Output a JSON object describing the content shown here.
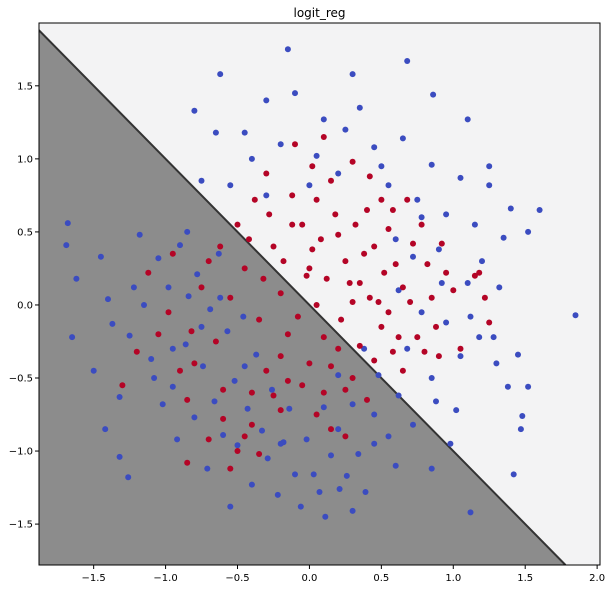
{
  "chart_data": {
    "type": "scatter",
    "title": "logit_reg",
    "xlabel": "",
    "ylabel": "",
    "xlim": [
      -1.88,
      2.02
    ],
    "ylim": [
      -1.78,
      1.93
    ],
    "xticks": [
      "−1.5",
      "−1.0",
      "−0.5",
      "0.0",
      "0.5",
      "1.0",
      "1.5",
      "2.0"
    ],
    "xtick_values": [
      -1.5,
      -1.0,
      -0.5,
      0.0,
      0.5,
      1.0,
      1.5,
      2.0
    ],
    "yticks": [
      "−1.5",
      "−1.0",
      "−0.5",
      "0.0",
      "0.5",
      "1.0",
      "1.5"
    ],
    "ytick_values": [
      -1.5,
      -1.0,
      -0.5,
      0.0,
      0.5,
      1.0,
      1.5
    ],
    "grid": false,
    "legend": "none",
    "decision_boundary": {
      "form": "x + y = c",
      "c": 0.0,
      "region_low_color": "#8c8c8c",
      "region_high_color": "#f3f3f4",
      "edge_color": "#333333"
    },
    "series": [
      {
        "color": "#3b4cc0",
        "points": [
          [
            -1.68,
            0.56
          ],
          [
            -1.69,
            0.41
          ],
          [
            -1.65,
            -0.22
          ],
          [
            -1.45,
            0.33
          ],
          [
            -1.4,
            0.04
          ],
          [
            -1.37,
            -0.13
          ],
          [
            -1.32,
            -0.63
          ],
          [
            -1.25,
            -0.21
          ],
          [
            -1.26,
            -1.18
          ],
          [
            -1.32,
            -1.04
          ],
          [
            -1.22,
            0.12
          ],
          [
            -1.18,
            0.48
          ],
          [
            -1.15,
            0.0
          ],
          [
            -1.1,
            -0.37
          ],
          [
            -1.05,
            0.32
          ],
          [
            -1.02,
            -0.68
          ],
          [
            -0.98,
            0.12
          ],
          [
            -0.95,
            -0.56
          ],
          [
            -0.92,
            -0.92
          ],
          [
            -0.9,
            0.41
          ],
          [
            -0.86,
            -0.27
          ],
          [
            -0.84,
            0.06
          ],
          [
            -0.8,
            -0.77
          ],
          [
            -0.78,
            0.21
          ],
          [
            -0.74,
            -0.42
          ],
          [
            -0.71,
            -1.12
          ],
          [
            -0.69,
            -0.03
          ],
          [
            -0.66,
            -0.66
          ],
          [
            -0.63,
            0.35
          ],
          [
            -0.6,
            -0.89
          ],
          [
            -0.57,
            -0.18
          ],
          [
            -0.55,
            -1.38
          ],
          [
            -0.52,
            -0.52
          ],
          [
            -0.5,
            -0.96
          ],
          [
            -0.46,
            -0.08
          ],
          [
            -0.43,
            -0.71
          ],
          [
            -0.4,
            -1.23
          ],
          [
            -0.37,
            -0.34
          ],
          [
            -0.33,
            -0.86
          ],
          [
            -0.29,
            -1.05
          ],
          [
            -0.26,
            -0.58
          ],
          [
            -0.22,
            -1.3
          ],
          [
            -0.18,
            -0.94
          ],
          [
            -0.14,
            -0.71
          ],
          [
            -0.1,
            -1.16
          ],
          [
            -0.06,
            -1.38
          ],
          [
            -0.02,
            -0.92
          ],
          [
            0.03,
            -1.16
          ],
          [
            0.07,
            -1.28
          ],
          [
            0.11,
            -1.45
          ],
          [
            0.15,
            -1.03
          ],
          [
            0.21,
            -1.26
          ],
          [
            0.26,
            -1.17
          ],
          [
            0.3,
            -1.41
          ],
          [
            0.34,
            -1.02
          ],
          [
            0.39,
            -1.28
          ],
          [
            -1.62,
            0.18
          ],
          [
            -1.5,
            -0.45
          ],
          [
            -1.42,
            -0.85
          ],
          [
            -0.95,
            -0.3
          ],
          [
            -0.85,
            0.5
          ],
          [
            -0.75,
            -0.15
          ],
          [
            -1.08,
            -0.5
          ],
          [
            -0.62,
            0.05
          ],
          [
            -0.45,
            -0.42
          ],
          [
            -0.2,
            -0.95
          ],
          [
            -0.15,
            1.75
          ],
          [
            -0.62,
            1.58
          ],
          [
            -0.8,
            1.33
          ],
          [
            -0.45,
            1.18
          ],
          [
            -0.3,
            1.4
          ],
          [
            0.1,
            1.27
          ],
          [
            0.3,
            1.58
          ],
          [
            0.68,
            1.67
          ],
          [
            0.86,
            1.44
          ],
          [
            1.1,
            1.27
          ],
          [
            -0.65,
            1.18
          ],
          [
            -0.4,
            1.0
          ],
          [
            -0.2,
            1.1
          ],
          [
            0.05,
            1.02
          ],
          [
            0.25,
            1.2
          ],
          [
            0.45,
            1.08
          ],
          [
            0.65,
            1.14
          ],
          [
            0.85,
            0.96
          ],
          [
            1.05,
            0.87
          ],
          [
            1.25,
            0.82
          ],
          [
            1.4,
            0.66
          ],
          [
            1.52,
            0.5
          ],
          [
            -0.75,
            0.85
          ],
          [
            -0.55,
            0.82
          ],
          [
            -0.3,
            0.75
          ],
          [
            0.0,
            0.82
          ],
          [
            0.2,
            0.9
          ],
          [
            0.55,
            0.82
          ],
          [
            0.75,
            0.72
          ],
          [
            0.95,
            0.62
          ],
          [
            1.15,
            0.55
          ],
          [
            1.35,
            0.46
          ],
          [
            1.2,
            0.3
          ],
          [
            1.32,
            0.12
          ],
          [
            1.1,
            0.15
          ],
          [
            0.9,
            0.38
          ],
          [
            0.72,
            0.33
          ],
          [
            0.62,
            0.1
          ],
          [
            0.78,
            -0.05
          ],
          [
            0.95,
            -0.12
          ],
          [
            1.12,
            -0.08
          ],
          [
            1.28,
            -0.22
          ],
          [
            1.05,
            -0.35
          ],
          [
            0.85,
            -0.5
          ],
          [
            0.62,
            -0.62
          ],
          [
            0.45,
            -0.75
          ],
          [
            0.3,
            -0.68
          ],
          [
            0.55,
            -0.9
          ],
          [
            0.72,
            -0.82
          ],
          [
            0.88,
            -0.66
          ],
          [
            1.02,
            -0.72
          ],
          [
            1.3,
            -0.4
          ],
          [
            1.45,
            -0.34
          ],
          [
            1.38,
            -0.56
          ],
          [
            1.52,
            -0.56
          ],
          [
            1.48,
            -0.76
          ],
          [
            1.47,
            -0.85
          ],
          [
            1.42,
            -1.16
          ],
          [
            1.12,
            -1.42
          ],
          [
            1.85,
            -0.07
          ],
          [
            0.85,
            -1.12
          ],
          [
            0.6,
            -1.1
          ],
          [
            0.45,
            -0.95
          ],
          [
            0.2,
            -0.85
          ],
          [
            0.1,
            -0.7
          ],
          [
            0.5,
            0.95
          ],
          [
            0.35,
            1.35
          ],
          [
            -0.1,
            1.45
          ],
          [
            1.25,
            0.95
          ],
          [
            1.6,
            0.65
          ],
          [
            0.38,
            -0.3
          ],
          [
            0.2,
            -0.48
          ],
          [
            0.48,
            -0.48
          ],
          [
            0.68,
            -0.3
          ],
          [
            0.6,
            0.45
          ],
          [
            0.92,
            0.15
          ],
          [
            0.78,
            0.6
          ],
          [
            1.18,
            -0.22
          ],
          [
            0.98,
            -0.95
          ]
        ]
      },
      {
        "color": "#b40426",
        "points": [
          [
            -1.3,
            -0.55
          ],
          [
            -1.2,
            -0.32
          ],
          [
            -1.12,
            0.22
          ],
          [
            -0.98,
            -0.05
          ],
          [
            -0.9,
            -0.45
          ],
          [
            -0.82,
            -0.18
          ],
          [
            -0.7,
            0.3
          ],
          [
            -0.6,
            -0.58
          ],
          [
            -0.5,
            0.55
          ],
          [
            -0.4,
            -0.82
          ],
          [
            -0.3,
            0.9
          ],
          [
            -0.2,
            -0.35
          ],
          [
            -0.1,
            1.1
          ],
          [
            0.0,
            0.25
          ],
          [
            0.1,
            -0.22
          ],
          [
            0.2,
            0.48
          ],
          [
            0.3,
            0.02
          ],
          [
            0.4,
            0.65
          ],
          [
            0.5,
            -0.15
          ],
          [
            0.6,
            0.28
          ],
          [
            -0.2,
            0.08
          ],
          [
            -0.05,
            -0.55
          ],
          [
            0.05,
            0.72
          ],
          [
            0.15,
            -0.42
          ],
          [
            0.25,
            0.3
          ],
          [
            0.35,
            -0.28
          ],
          [
            0.45,
            0.4
          ],
          [
            0.55,
            -0.05
          ],
          [
            0.65,
            0.12
          ],
          [
            0.75,
            -0.22
          ],
          [
            0.85,
            0.05
          ],
          [
            0.95,
            0.22
          ],
          [
            1.05,
            -0.3
          ],
          [
            1.15,
            0.2
          ],
          [
            1.22,
            0.05
          ],
          [
            -0.45,
            0.25
          ],
          [
            -0.35,
            -0.1
          ],
          [
            -0.25,
            0.4
          ],
          [
            -0.15,
            -0.2
          ],
          [
            -0.05,
            0.55
          ],
          [
            0.05,
            0.0
          ],
          [
            0.15,
            0.85
          ],
          [
            0.25,
            -0.58
          ],
          [
            0.35,
            0.15
          ],
          [
            0.45,
            -0.38
          ],
          [
            0.55,
            0.52
          ],
          [
            0.65,
            -0.45
          ],
          [
            0.72,
            0.42
          ],
          [
            0.82,
            0.28
          ],
          [
            0.9,
            -0.35
          ],
          [
            -0.55,
            0.05
          ],
          [
            -0.65,
            -0.25
          ],
          [
            -0.75,
            0.12
          ],
          [
            -0.85,
            -0.65
          ],
          [
            -0.95,
            0.35
          ],
          [
            -0.38,
            0.72
          ],
          [
            -0.28,
            0.62
          ],
          [
            -0.18,
            0.3
          ],
          [
            -0.08,
            -0.08
          ],
          [
            0.02,
            0.38
          ],
          [
            0.12,
            0.18
          ],
          [
            0.22,
            -0.1
          ],
          [
            0.32,
            0.55
          ],
          [
            0.42,
            0.05
          ],
          [
            0.52,
            0.22
          ],
          [
            0.62,
            -0.22
          ],
          [
            0.1,
            1.15
          ],
          [
            0.3,
            0.98
          ],
          [
            0.5,
            0.72
          ],
          [
            0.02,
            0.95
          ],
          [
            -0.12,
            0.75
          ],
          [
            0.18,
            0.62
          ],
          [
            0.38,
            0.35
          ],
          [
            0.58,
            0.65
          ],
          [
            0.78,
            0.55
          ],
          [
            -0.6,
            -0.78
          ],
          [
            -0.5,
            -1.0
          ],
          [
            -0.4,
            -0.6
          ],
          [
            -0.3,
            -0.45
          ],
          [
            -0.2,
            -0.72
          ],
          [
            0.0,
            -0.4
          ],
          [
            0.1,
            -0.6
          ],
          [
            0.2,
            -0.3
          ],
          [
            0.3,
            -0.5
          ],
          [
            0.4,
            -0.65
          ],
          [
            0.15,
            -0.85
          ],
          [
            0.25,
            -0.9
          ],
          [
            -0.7,
            -0.92
          ],
          [
            -0.85,
            -1.08
          ],
          [
            -0.55,
            -1.12
          ],
          [
            -0.45,
            -0.9
          ],
          [
            -0.35,
            -1.02
          ],
          [
            -0.25,
            -0.62
          ],
          [
            -0.15,
            -0.52
          ],
          [
            0.05,
            -0.75
          ],
          [
            0.88,
            -0.15
          ],
          [
            1.0,
            0.1
          ],
          [
            0.68,
            0.72
          ],
          [
            0.42,
            0.88
          ],
          [
            -0.02,
            0.2
          ],
          [
            -0.32,
            0.18
          ],
          [
            -0.42,
            0.45
          ],
          [
            -0.62,
            0.4
          ],
          [
            -0.8,
            -0.4
          ],
          [
            -1.05,
            -0.2
          ],
          [
            0.48,
            0.02
          ],
          [
            0.58,
            -0.32
          ],
          [
            0.28,
            0.15
          ],
          [
            0.08,
            0.45
          ],
          [
            -0.12,
            0.55
          ],
          [
            0.8,
            -0.32
          ],
          [
            0.7,
            0.02
          ],
          [
            0.92,
            0.42
          ],
          [
            1.18,
            0.22
          ],
          [
            1.25,
            -0.12
          ]
        ]
      }
    ]
  }
}
